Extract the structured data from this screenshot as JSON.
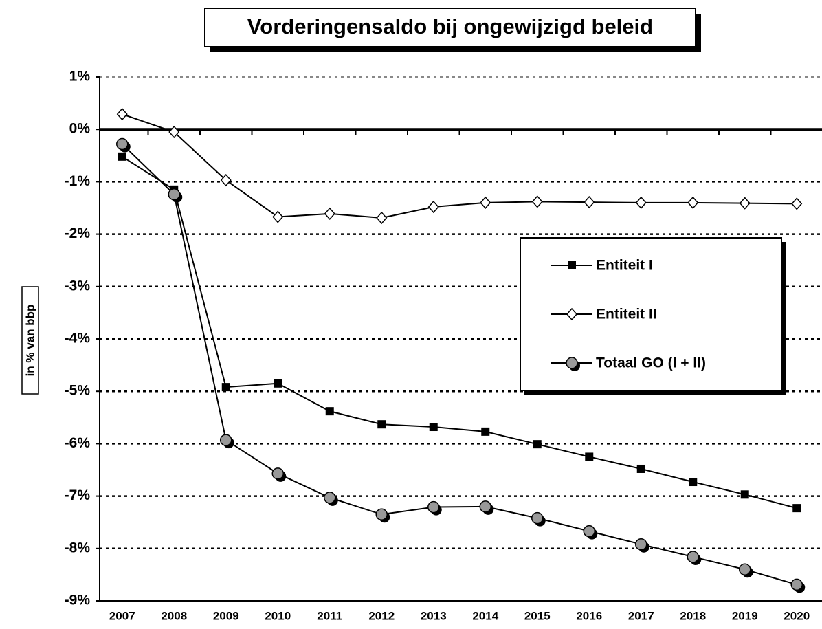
{
  "chart_data": {
    "type": "line",
    "title": "Vorderingensaldo bij ongewijzigd beleid",
    "y_label": "in % van bbp",
    "categories": [
      "2007",
      "2008",
      "2009",
      "2010",
      "2011",
      "2012",
      "2013",
      "2014",
      "2015",
      "2016",
      "2017",
      "2018",
      "2019",
      "2020"
    ],
    "series": [
      {
        "name": "Entiteit I",
        "color": "#000000",
        "marker": "square",
        "values": [
          -0.52,
          -1.15,
          -4.92,
          -4.85,
          -5.38,
          -5.63,
          -5.68,
          -5.77,
          -6.01,
          -6.25,
          -6.48,
          -6.73,
          -6.97,
          -7.23
        ]
      },
      {
        "name": "Entiteit II",
        "color": "#ffffff",
        "marker": "diamond",
        "values": [
          0.29,
          -0.05,
          -0.97,
          -1.67,
          -1.61,
          -1.69,
          -1.48,
          -1.4,
          -1.38,
          -1.39,
          -1.4,
          -1.4,
          -1.41,
          -1.42
        ]
      },
      {
        "name": "Totaal GO (I + II)",
        "color": "#999999",
        "marker": "circle",
        "values": [
          -0.28,
          -1.24,
          -5.93,
          -6.57,
          -7.03,
          -7.35,
          -7.21,
          -7.2,
          -7.42,
          -7.67,
          -7.92,
          -8.16,
          -8.4,
          -8.69
        ]
      }
    ],
    "ylim": [
      -9,
      1
    ],
    "yticks": [
      {
        "value": 1,
        "label": "1%"
      },
      {
        "value": 0,
        "label": "0%"
      },
      {
        "value": -1,
        "label": "-1%"
      },
      {
        "value": -2,
        "label": "-2%"
      },
      {
        "value": -3,
        "label": "-3%"
      },
      {
        "value": -4,
        "label": "-4%"
      },
      {
        "value": -5,
        "label": "-5%"
      },
      {
        "value": -6,
        "label": "-6%"
      },
      {
        "value": -7,
        "label": "-7%"
      },
      {
        "value": -8,
        "label": "-8%"
      },
      {
        "value": -9,
        "label": "-9%"
      }
    ],
    "grid": true,
    "legend": "right"
  }
}
